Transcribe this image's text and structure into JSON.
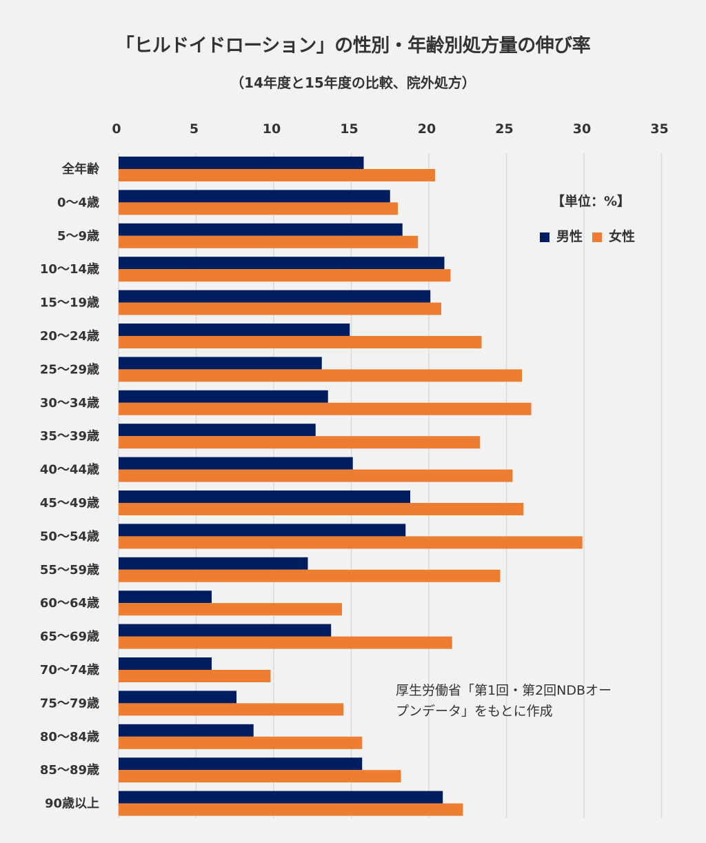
{
  "chart_data": {
    "type": "bar",
    "orientation": "horizontal",
    "title": "「ヒルドイドローション」の性別・年齢別処方量の伸び率",
    "subtitle": "（14年度と15年度の比較、院外処方）",
    "unit_label": "【単位：%】",
    "xlabel": "",
    "ylabel": "",
    "xlim": [
      0,
      35
    ],
    "x_ticks": [
      "0",
      "5",
      "10",
      "15",
      "20",
      "25",
      "30",
      "35"
    ],
    "x_axis_position": "top",
    "grid": true,
    "legend_position": "top-right",
    "categories": [
      "全年齢",
      "0〜4歳",
      "5〜9歳",
      "10〜14歳",
      "15〜19歳",
      "20〜24歳",
      "25〜29歳",
      "30〜34歳",
      "35〜39歳",
      "40〜44歳",
      "45〜49歳",
      "50〜54歳",
      "55〜59歳",
      "60〜64歳",
      "65〜69歳",
      "70〜74歳",
      "75〜79歳",
      "80〜84歳",
      "85〜89歳",
      "90歳以上"
    ],
    "series": [
      {
        "name": "男性",
        "color": "#001e5f",
        "values": [
          15.8,
          17.5,
          18.3,
          21.0,
          20.1,
          14.9,
          13.1,
          13.5,
          12.7,
          15.1,
          18.8,
          18.5,
          12.2,
          6.0,
          13.7,
          6.0,
          7.6,
          8.7,
          15.7,
          20.9
        ]
      },
      {
        "name": "女性",
        "color": "#ed7d31",
        "values": [
          20.4,
          18.0,
          19.3,
          21.4,
          20.8,
          23.4,
          26.0,
          26.6,
          23.3,
          25.4,
          26.1,
          29.9,
          24.6,
          14.4,
          21.5,
          9.8,
          14.5,
          15.7,
          18.2,
          22.2
        ]
      }
    ],
    "annotation": "厚生労働省「第1回・第2回NDBオープンデータ」をもとに作成"
  },
  "source_lines": [
    "厚生労働省「第1回・第2回NDBオー",
    "プンデータ」をもとに作成"
  ]
}
